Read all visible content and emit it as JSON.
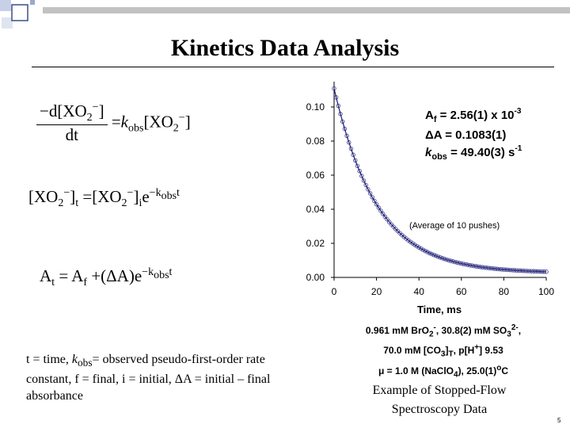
{
  "title": "Kinetics Data Analysis",
  "equations": {
    "rate": {
      "minus_d": "−d[XO",
      "sub2": "2",
      "sup_minus": "−",
      "close": "]",
      "dt": "dt",
      "equals": "=",
      "k": "k",
      "obs": "obs",
      "rhs": "[XO",
      "rhs_sub": "2",
      "rhs_sup": "−",
      "rhs_close": "]"
    },
    "conc": {
      "lhs": "[XO",
      "lhs_sub": "2",
      "lhs_sup": "−",
      "lhs_close": "]",
      "t": "t",
      "mid": " =[XO",
      "mid_sub": "2",
      "mid_sup": "−",
      "mid_close": "]",
      "i": "i",
      "e": "e",
      "exp": "−k",
      "exp_sub": "obs",
      "exp_t": "t"
    },
    "abs": {
      "A": "A",
      "t": "t",
      "eq": " = A",
      "f": "f",
      "rest": " +(ΔA)e",
      "exp": "−k",
      "exp_sub": "obs",
      "exp_t": "t"
    }
  },
  "legend": {
    "line1_a": "t = time, ",
    "line1_k": "k",
    "line1_sub": "obs",
    "line1_b": "= observed pseudo-first-order rate constant, f = final, i = initial, ΔA = initial – final absorbance"
  },
  "caption": {
    "line1": "Example of Stopped-Flow",
    "line2": "Spectroscopy Data"
  },
  "page_number": "5",
  "chart_data": {
    "type": "scatter",
    "title": "",
    "xlabel": "Time, ms",
    "ylabel": "",
    "xlim": [
      0,
      100
    ],
    "ylim": [
      0,
      0.1
    ],
    "xticks": [
      "0",
      "20",
      "40",
      "60",
      "80",
      "100"
    ],
    "yticks": [
      "0.00",
      "0.02",
      "0.04",
      "0.06",
      "0.08",
      "0.10"
    ],
    "grid": false,
    "fit": {
      "A_f": 0.00256,
      "dA": 0.1083,
      "k_obs": 49.4
    },
    "series": [
      {
        "name": "",
        "x_start": 0,
        "x_end": 100,
        "x_step": 1,
        "color": "#3a3a8c"
      }
    ],
    "annotations": {
      "af_label": "A",
      "af_sub": "f",
      "af_value": " = 2.56(1) x 10",
      "af_exp": "-3",
      "da": "ΔA = 0.1083(1)",
      "k_label": "k",
      "k_sub": "obs",
      "k_value": " = 49.40(3) s",
      "k_exp": "-1",
      "pushes": "(Average of 10 pushes)"
    },
    "conditions": {
      "l1a": "0.961 mM BrO",
      "l1s": "2",
      "l1p": "-",
      "l1b": ", 30.8(2) mM SO",
      "l1s2": "3",
      "l1p2": "2-",
      "l1c": ",",
      "l2a": "70.0 mM [CO",
      "l2s": "3",
      "l2b": "]",
      "l2t": "T",
      "l2c": ", p[H",
      "l2p": "+",
      "l2d": "] 9.53",
      "l3a": "μ = 1.0 M (NaClO",
      "l3s": "4",
      "l3b": "), 25.0(1)",
      "l3p": "o",
      "l3c": "C"
    },
    "colors": {
      "points": "#3a3a8c",
      "fit": "#1a1a6e"
    }
  }
}
